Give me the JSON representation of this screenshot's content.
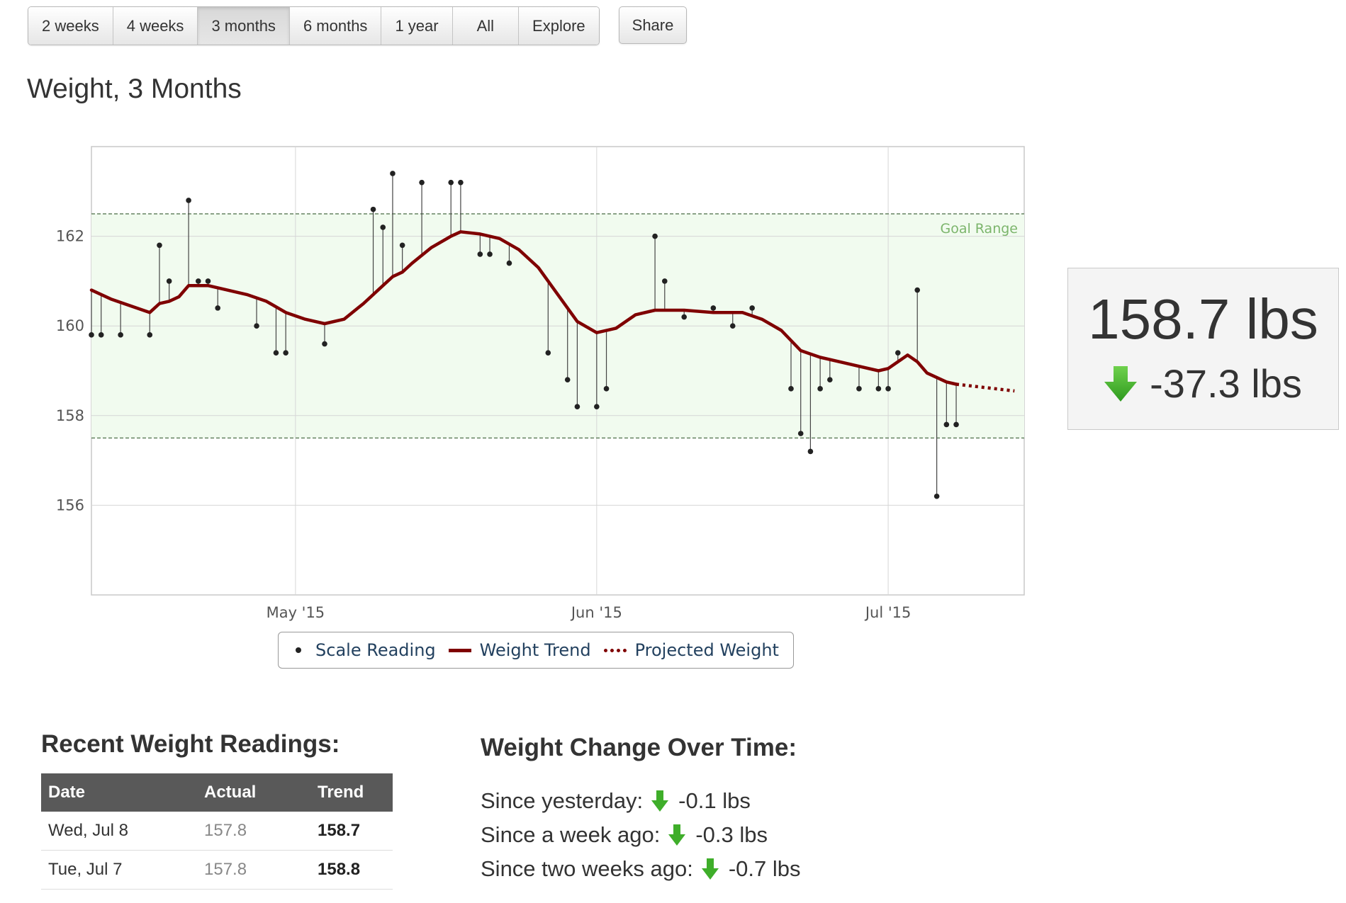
{
  "toolbar": {
    "ranges": [
      {
        "label": "2 weeks",
        "active": false
      },
      {
        "label": "4 weeks",
        "active": false
      },
      {
        "label": "3 months",
        "active": true
      },
      {
        "label": "6 months",
        "active": false
      },
      {
        "label": "1 year",
        "active": false
      },
      {
        "label": "All",
        "active": false
      },
      {
        "label": "Explore",
        "active": false
      }
    ],
    "share_label": "Share"
  },
  "page_title": "Weight, 3 Months",
  "current": {
    "weight": "158.7 lbs",
    "change": "-37.3 lbs"
  },
  "colors": {
    "trend": "#7f0000",
    "goal_fill": "#f1fbef",
    "goal_line": "#5a7a55",
    "arrow_green": "#3fae2a"
  },
  "chart_data": {
    "type": "line",
    "y_ticks": [
      "156",
      "158",
      "160",
      "162"
    ],
    "x_ticks": [
      {
        "label": "May '15",
        "date": "2015-05-01"
      },
      {
        "label": "Jun '15",
        "date": "2015-06-01"
      },
      {
        "label": "Jul '15",
        "date": "2015-07-01"
      }
    ],
    "x_range": [
      "2015-04-10",
      "2015-07-15"
    ],
    "y_range": [
      154.0,
      164.0
    ],
    "goal_range": {
      "label": "Goal Range",
      "min": 157.5,
      "max": 162.5
    },
    "grid": true,
    "legend": {
      "placement": "bottom",
      "entries": [
        "Scale Reading",
        "Weight Trend",
        "Projected Weight"
      ]
    },
    "series": [
      {
        "name": "Scale Reading",
        "points": [
          [
            "2015-04-10",
            159.8
          ],
          [
            "2015-04-11",
            159.8
          ],
          [
            "2015-04-13",
            159.8
          ],
          [
            "2015-04-16",
            159.8
          ],
          [
            "2015-04-17",
            161.8
          ],
          [
            "2015-04-18",
            161.0
          ],
          [
            "2015-04-20",
            162.8
          ],
          [
            "2015-04-21",
            161.0
          ],
          [
            "2015-04-22",
            161.0
          ],
          [
            "2015-04-23",
            160.4
          ],
          [
            "2015-04-27",
            160.0
          ],
          [
            "2015-04-29",
            159.4
          ],
          [
            "2015-04-30",
            159.4
          ],
          [
            "2015-05-04",
            159.6
          ],
          [
            "2015-05-09",
            162.6
          ],
          [
            "2015-05-10",
            162.2
          ],
          [
            "2015-05-11",
            163.4
          ],
          [
            "2015-05-12",
            161.8
          ],
          [
            "2015-05-14",
            163.2
          ],
          [
            "2015-05-17",
            163.2
          ],
          [
            "2015-05-18",
            163.2
          ],
          [
            "2015-05-20",
            161.6
          ],
          [
            "2015-05-21",
            161.6
          ],
          [
            "2015-05-23",
            161.4
          ],
          [
            "2015-05-27",
            159.4
          ],
          [
            "2015-05-29",
            158.8
          ],
          [
            "2015-05-30",
            158.2
          ],
          [
            "2015-06-01",
            158.2
          ],
          [
            "2015-06-02",
            158.6
          ],
          [
            "2015-06-07",
            162.0
          ],
          [
            "2015-06-08",
            161.0
          ],
          [
            "2015-06-10",
            160.2
          ],
          [
            "2015-06-13",
            160.4
          ],
          [
            "2015-06-15",
            160.0
          ],
          [
            "2015-06-17",
            160.4
          ],
          [
            "2015-06-21",
            158.6
          ],
          [
            "2015-06-22",
            157.6
          ],
          [
            "2015-06-23",
            157.2
          ],
          [
            "2015-06-24",
            158.6
          ],
          [
            "2015-06-25",
            158.8
          ],
          [
            "2015-06-28",
            158.6
          ],
          [
            "2015-06-30",
            158.6
          ],
          [
            "2015-07-01",
            158.6
          ],
          [
            "2015-07-02",
            159.4
          ],
          [
            "2015-07-04",
            160.8
          ],
          [
            "2015-07-06",
            156.2
          ],
          [
            "2015-07-07",
            157.8
          ],
          [
            "2015-07-08",
            157.8
          ]
        ]
      },
      {
        "name": "Weight Trend",
        "points": [
          [
            "2015-04-10",
            160.8
          ],
          [
            "2015-04-12",
            160.6
          ],
          [
            "2015-04-14",
            160.45
          ],
          [
            "2015-04-16",
            160.3
          ],
          [
            "2015-04-17",
            160.5
          ],
          [
            "2015-04-18",
            160.55
          ],
          [
            "2015-04-19",
            160.65
          ],
          [
            "2015-04-20",
            160.9
          ],
          [
            "2015-04-22",
            160.9
          ],
          [
            "2015-04-24",
            160.8
          ],
          [
            "2015-04-26",
            160.7
          ],
          [
            "2015-04-28",
            160.55
          ],
          [
            "2015-04-30",
            160.3
          ],
          [
            "2015-05-02",
            160.15
          ],
          [
            "2015-05-04",
            160.05
          ],
          [
            "2015-05-06",
            160.15
          ],
          [
            "2015-05-08",
            160.5
          ],
          [
            "2015-05-10",
            160.9
          ],
          [
            "2015-05-11",
            161.1
          ],
          [
            "2015-05-12",
            161.2
          ],
          [
            "2015-05-13",
            161.4
          ],
          [
            "2015-05-15",
            161.75
          ],
          [
            "2015-05-17",
            162.0
          ],
          [
            "2015-05-18",
            162.1
          ],
          [
            "2015-05-20",
            162.05
          ],
          [
            "2015-05-22",
            161.95
          ],
          [
            "2015-05-24",
            161.7
          ],
          [
            "2015-05-26",
            161.3
          ],
          [
            "2015-05-28",
            160.7
          ],
          [
            "2015-05-30",
            160.1
          ],
          [
            "2015-06-01",
            159.85
          ],
          [
            "2015-06-03",
            159.95
          ],
          [
            "2015-06-05",
            160.25
          ],
          [
            "2015-06-07",
            160.35
          ],
          [
            "2015-06-10",
            160.35
          ],
          [
            "2015-06-13",
            160.3
          ],
          [
            "2015-06-16",
            160.3
          ],
          [
            "2015-06-18",
            160.15
          ],
          [
            "2015-06-20",
            159.9
          ],
          [
            "2015-06-22",
            159.45
          ],
          [
            "2015-06-24",
            159.3
          ],
          [
            "2015-06-26",
            159.2
          ],
          [
            "2015-06-28",
            159.1
          ],
          [
            "2015-06-30",
            159.0
          ],
          [
            "2015-07-01",
            159.05
          ],
          [
            "2015-07-03",
            159.35
          ],
          [
            "2015-07-04",
            159.2
          ],
          [
            "2015-07-05",
            158.95
          ],
          [
            "2015-07-07",
            158.75
          ],
          [
            "2015-07-08",
            158.7
          ]
        ]
      },
      {
        "name": "Projected Weight",
        "points": [
          [
            "2015-07-08",
            158.7
          ],
          [
            "2015-07-14",
            158.55
          ]
        ]
      }
    ]
  },
  "recent": {
    "title": "Recent Weight Readings:",
    "columns": [
      "Date",
      "Actual",
      "Trend"
    ],
    "rows": [
      {
        "date": "Wed, Jul 8",
        "actual": "157.8",
        "trend": "158.7"
      },
      {
        "date": "Tue, Jul 7",
        "actual": "157.8",
        "trend": "158.8"
      }
    ]
  },
  "changes": {
    "title": "Weight Change Over Time:",
    "items": [
      {
        "label": "Since yesterday:",
        "value": "-0.1 lbs"
      },
      {
        "label": "Since a week ago:",
        "value": "-0.3 lbs"
      },
      {
        "label": "Since two weeks ago:",
        "value": "-0.7 lbs"
      }
    ]
  }
}
